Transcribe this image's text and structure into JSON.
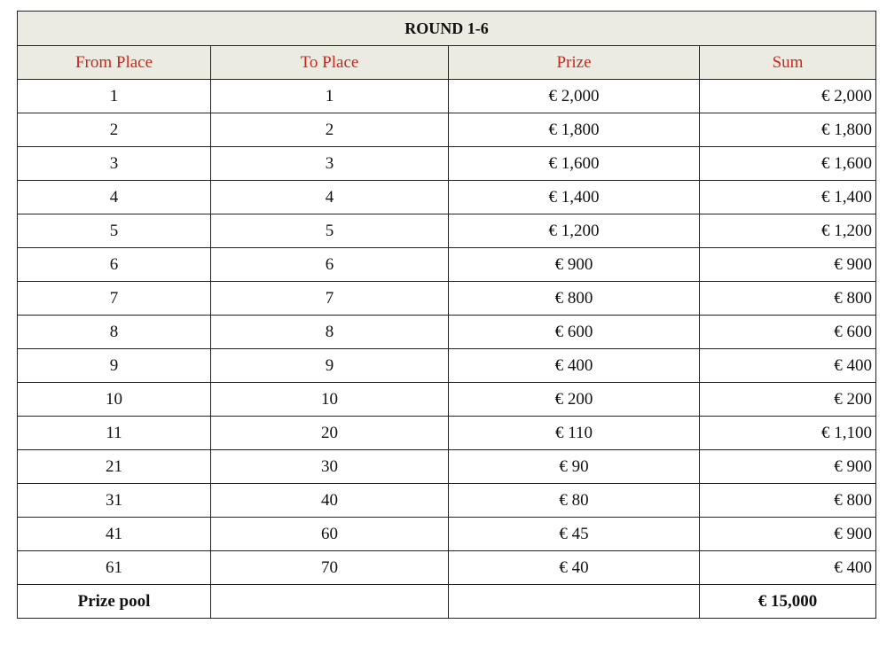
{
  "title": "ROUND 1-6",
  "headers": [
    "From Place",
    "To Place",
    "Prize",
    "Sum"
  ],
  "header_color": "#c8281e",
  "rows": [
    [
      "1",
      "1",
      "€ 2,000",
      "€ 2,000"
    ],
    [
      "2",
      "2",
      "€ 1,800",
      "€ 1,800"
    ],
    [
      "3",
      "3",
      "€ 1,600",
      "€ 1,600"
    ],
    [
      "4",
      "4",
      "€ 1,400",
      "€ 1,400"
    ],
    [
      "5",
      "5",
      "€ 1,200",
      "€ 1,200"
    ],
    [
      "6",
      "6",
      "€ 900",
      "€ 900"
    ],
    [
      "7",
      "7",
      "€ 800",
      "€ 800"
    ],
    [
      "8",
      "8",
      "€ 600",
      "€ 600"
    ],
    [
      "9",
      "9",
      "€ 400",
      "€ 400"
    ],
    [
      "10",
      "10",
      "€ 200",
      "€ 200"
    ],
    [
      "11",
      "20",
      "€ 110",
      "€ 1,100"
    ],
    [
      "21",
      "30",
      "€ 90",
      "€ 900"
    ],
    [
      "31",
      "40",
      "€ 80",
      "€ 800"
    ],
    [
      "41",
      "60",
      "€ 45",
      "€ 900"
    ],
    [
      "61",
      "70",
      "€ 40",
      "€ 400"
    ]
  ],
  "total": {
    "label": "Prize pool",
    "value": "€ 15,000"
  }
}
